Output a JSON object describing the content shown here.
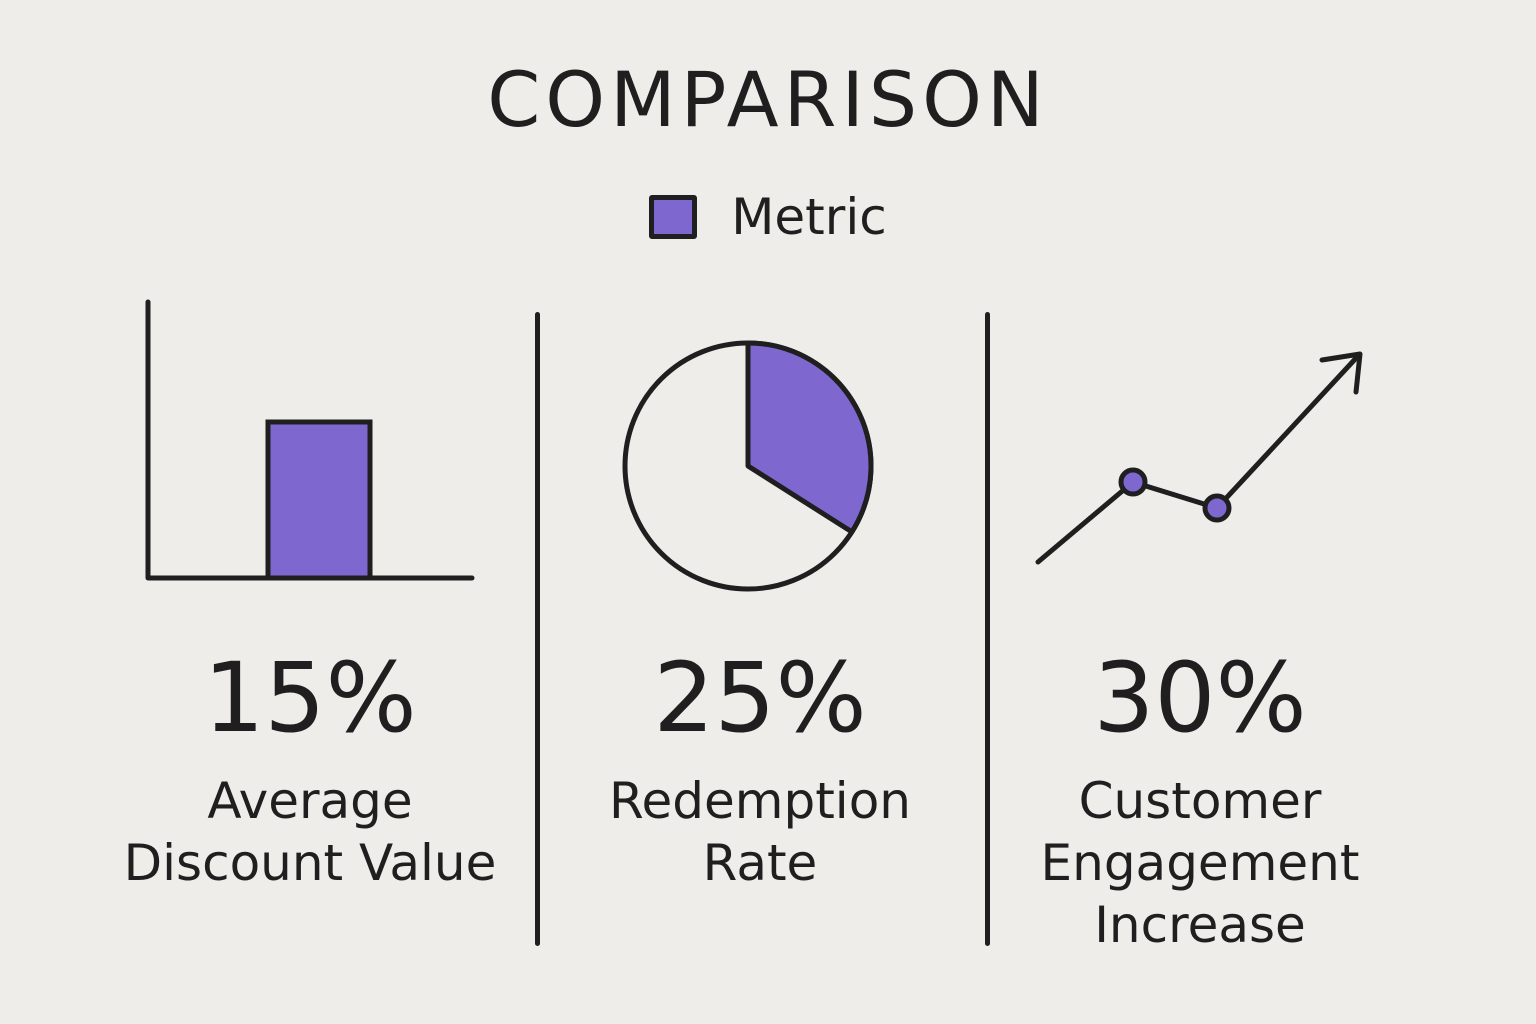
{
  "chart_data": {
    "type": "bar",
    "title": "COMPARISON",
    "legend": {
      "label": "Metric",
      "placement": "top-center"
    },
    "series": [
      {
        "name": "Metric",
        "values": [
          15,
          25,
          30
        ]
      }
    ],
    "categories": [
      "Average Discount Value",
      "Redemption Rate",
      "Customer Engagement Increase"
    ],
    "panels": [
      {
        "value": 15,
        "value_label": "15%",
        "label_lines": [
          "Average",
          "Discount Value"
        ],
        "icon": "bar-chart-icon"
      },
      {
        "value": 25,
        "value_label": "25%",
        "label_lines": [
          "Redemption",
          "Rate"
        ],
        "icon": "pie-chart-icon"
      },
      {
        "value": 30,
        "value_label": "30%",
        "label_lines": [
          "Customer",
          "Engagement",
          "Increase"
        ],
        "icon": "line-trend-icon"
      }
    ],
    "unit": "%"
  },
  "colors": {
    "accent": "#7e68cf",
    "ink": "#1f1f1f",
    "background": "#efedea"
  }
}
